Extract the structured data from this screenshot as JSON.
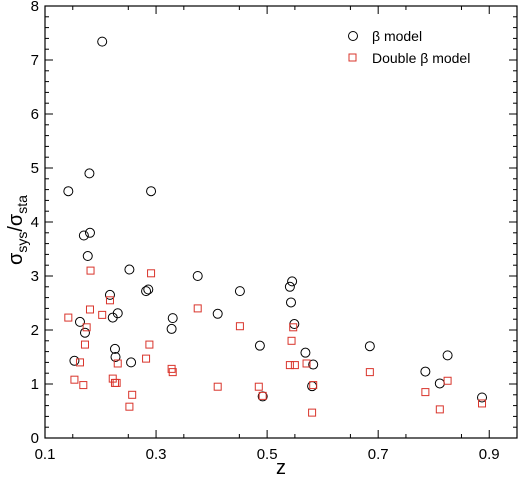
{
  "chart_data": {
    "type": "scatter",
    "xlabel": "z",
    "ylabel": {
      "main": "σ",
      "sub1": "sys",
      "slash": "/σ",
      "sub2": "sta"
    },
    "xlim": [
      0.1,
      0.95
    ],
    "ylim": [
      0,
      8
    ],
    "xticks": [
      0.1,
      0.3,
      0.5,
      0.7,
      0.9
    ],
    "xtick_labels": [
      "0.1",
      "0.3",
      "0.5",
      "0.7",
      "0.9"
    ],
    "yticks": [
      0,
      1,
      2,
      3,
      4,
      5,
      6,
      7,
      8
    ],
    "ytick_labels": [
      "0",
      "1",
      "2",
      "3",
      "4",
      "5",
      "6",
      "7",
      "8"
    ],
    "grid": false,
    "legend_position": "top-right",
    "series": [
      {
        "name": "β model",
        "marker": "circle",
        "color": "#000000",
        "points": [
          [
            0.142,
            4.57
          ],
          [
            0.153,
            1.43
          ],
          [
            0.163,
            2.15
          ],
          [
            0.17,
            3.75
          ],
          [
            0.172,
            1.95
          ],
          [
            0.177,
            3.37
          ],
          [
            0.18,
            4.9
          ],
          [
            0.181,
            3.8
          ],
          [
            0.203,
            7.34
          ],
          [
            0.217,
            2.65
          ],
          [
            0.222,
            2.23
          ],
          [
            0.226,
            1.65
          ],
          [
            0.227,
            1.5
          ],
          [
            0.231,
            2.31
          ],
          [
            0.252,
            3.12
          ],
          [
            0.255,
            1.4
          ],
          [
            0.282,
            2.72
          ],
          [
            0.286,
            2.75
          ],
          [
            0.291,
            4.57
          ],
          [
            0.328,
            2.02
          ],
          [
            0.33,
            2.22
          ],
          [
            0.375,
            3.0
          ],
          [
            0.411,
            2.3
          ],
          [
            0.451,
            2.72
          ],
          [
            0.487,
            1.71
          ],
          [
            0.492,
            0.77
          ],
          [
            0.541,
            2.8
          ],
          [
            0.543,
            2.51
          ],
          [
            0.545,
            2.9
          ],
          [
            0.549,
            2.11
          ],
          [
            0.569,
            1.58
          ],
          [
            0.581,
            0.96
          ],
          [
            0.583,
            1.36
          ],
          [
            0.685,
            1.7
          ],
          [
            0.785,
            1.23
          ],
          [
            0.811,
            1.01
          ],
          [
            0.825,
            1.53
          ],
          [
            0.887,
            0.75
          ]
        ]
      },
      {
        "name": "Double β model",
        "marker": "square",
        "color": "#d9342b",
        "points": [
          [
            0.142,
            2.23
          ],
          [
            0.153,
            1.08
          ],
          [
            0.163,
            1.4
          ],
          [
            0.169,
            0.98
          ],
          [
            0.172,
            1.73
          ],
          [
            0.175,
            2.05
          ],
          [
            0.181,
            2.38
          ],
          [
            0.182,
            3.1
          ],
          [
            0.203,
            2.28
          ],
          [
            0.217,
            2.55
          ],
          [
            0.222,
            1.1
          ],
          [
            0.226,
            1.02
          ],
          [
            0.229,
            1.02
          ],
          [
            0.231,
            1.38
          ],
          [
            0.252,
            0.58
          ],
          [
            0.257,
            0.8
          ],
          [
            0.282,
            1.47
          ],
          [
            0.288,
            1.73
          ],
          [
            0.291,
            3.05
          ],
          [
            0.328,
            1.28
          ],
          [
            0.33,
            1.22
          ],
          [
            0.375,
            2.4
          ],
          [
            0.411,
            0.95
          ],
          [
            0.451,
            2.07
          ],
          [
            0.485,
            0.95
          ],
          [
            0.492,
            0.78
          ],
          [
            0.541,
            1.35
          ],
          [
            0.544,
            1.8
          ],
          [
            0.547,
            2.05
          ],
          [
            0.55,
            1.35
          ],
          [
            0.571,
            1.38
          ],
          [
            0.581,
            0.47
          ],
          [
            0.583,
            0.98
          ],
          [
            0.685,
            1.22
          ],
          [
            0.785,
            0.85
          ],
          [
            0.811,
            0.53
          ],
          [
            0.825,
            1.06
          ],
          [
            0.887,
            0.64
          ]
        ]
      }
    ]
  }
}
